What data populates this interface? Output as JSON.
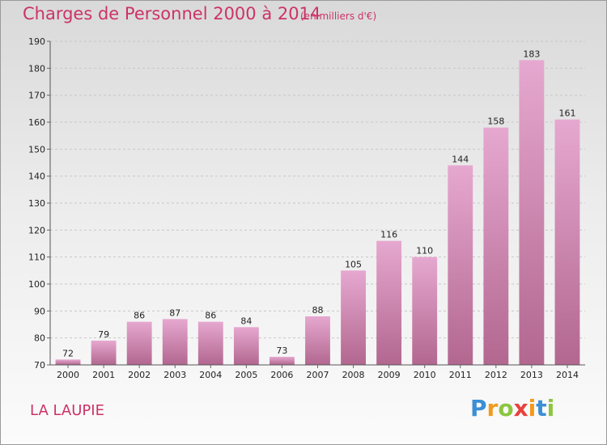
{
  "header": {
    "title": "Charges de Personnel 2000 à 2014",
    "subtitle": "(en milliers d'€)"
  },
  "footer": {
    "town": "LA LAUPIE",
    "logo": {
      "letters": [
        "P",
        "r",
        "o",
        "x",
        "i",
        "t",
        "i"
      ],
      "colors": [
        "#3a8fd6",
        "#f29a1d",
        "#8cc63f",
        "#e8413c",
        "#f29a1d",
        "#3a8fd6",
        "#8cc63f"
      ]
    }
  },
  "colors": {
    "accent": "#cc3366",
    "bar_top": "#e6a8d0",
    "bar_bottom": "#b2678f",
    "grid": "#c8c8c8"
  },
  "chart_data": {
    "type": "bar",
    "title": "Charges de Personnel 2000 à 2014",
    "categories": [
      "2000",
      "2001",
      "2002",
      "2003",
      "2004",
      "2005",
      "2006",
      "2007",
      "2008",
      "2009",
      "2010",
      "2011",
      "2012",
      "2013",
      "2014"
    ],
    "values": [
      72,
      79,
      86,
      87,
      86,
      84,
      73,
      88,
      105,
      116,
      110,
      144,
      158,
      183,
      161
    ],
    "ylim": [
      70,
      190
    ],
    "yticks": [
      70,
      80,
      90,
      100,
      110,
      120,
      130,
      140,
      150,
      160,
      170,
      180,
      190
    ],
    "grid": true,
    "legend": "none"
  }
}
